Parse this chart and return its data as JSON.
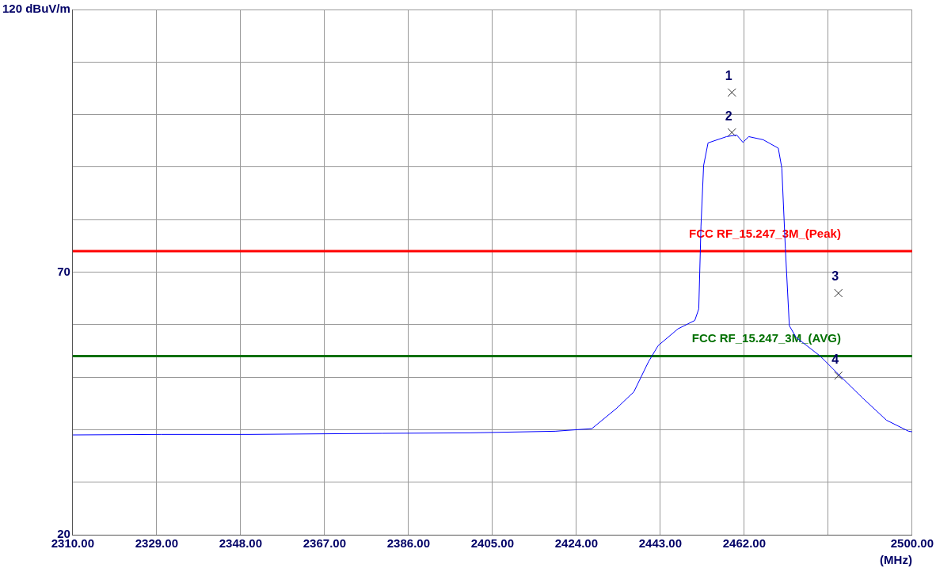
{
  "chart_data": {
    "type": "line",
    "xlabel": "(MHz)",
    "xlim": [
      2310,
      2500
    ],
    "xticks": [
      {
        "value": 2310,
        "label": "2310.00"
      },
      {
        "value": 2329,
        "label": "2329.00"
      },
      {
        "value": 2348,
        "label": "2348.00"
      },
      {
        "value": 2367,
        "label": "2367.00"
      },
      {
        "value": 2386,
        "label": "2386.00"
      },
      {
        "value": 2405,
        "label": "2405.00"
      },
      {
        "value": 2424,
        "label": "2424.00"
      },
      {
        "value": 2443,
        "label": "2443.00"
      },
      {
        "value": 2462,
        "label": "2462.00"
      },
      {
        "value": 2481,
        "label": null
      },
      {
        "value": 2500,
        "label": "2500.00"
      }
    ],
    "ylim": [
      20,
      120
    ],
    "yticks": [
      20,
      {
        "value": 30,
        "label": null
      },
      {
        "value": 40,
        "label": null
      },
      {
        "value": 50,
        "label": null
      },
      {
        "value": 60,
        "label": null
      },
      70,
      {
        "value": 80,
        "label": null
      },
      {
        "value": 90,
        "label": null
      },
      {
        "value": 100,
        "label": null
      },
      {
        "value": 110,
        "label": null
      },
      {
        "value": 120,
        "label": "120 dBuV/m"
      }
    ],
    "grid": true,
    "legend": false,
    "series": [
      {
        "type": "line",
        "color": "#0000ff",
        "marker": "none",
        "x": [
          2310,
          2330,
          2350,
          2380,
          2400,
          2419.2,
          2427.5,
          2433,
          2437,
          2440.3,
          2442.5,
          2447,
          2450.8,
          2451.7,
          2452.2,
          2452.8,
          2453.8,
          2458,
          2460.3,
          2461.7,
          2463,
          2466.3,
          2469.7,
          2470.5,
          2471.3,
          2472.2,
          2473.7,
          2479.2,
          2483,
          2488.7,
          2494.2,
          2499.2,
          2500
        ],
        "values": [
          39,
          39.1,
          39.1,
          39.3,
          39.4,
          39.7,
          40.2,
          44,
          47.2,
          52.9,
          56,
          59.2,
          60.8,
          63,
          78.8,
          90.3,
          94.6,
          95.8,
          96.1,
          94.7,
          95.8,
          95.2,
          93.6,
          89.8,
          74.5,
          59.8,
          57.6,
          54,
          50.8,
          46.1,
          41.8,
          39.7,
          39.6
        ]
      },
      {
        "type": "scatter",
        "color": "#333333",
        "marker": "cross",
        "x": [
          2459.2,
          2459.2,
          2483.3,
          2483.3
        ],
        "values": [
          104.2,
          96.6,
          66,
          50.3
        ]
      }
    ],
    "annotations": [
      "1",
      "2",
      "3",
      "4"
    ],
    "ref_lines": [
      {
        "axis": "y",
        "value": 74,
        "label": "FCC RF_15.247_3M_(Peak)",
        "color": "#ff0000"
      },
      {
        "axis": "y",
        "value": 54,
        "label": "FCC RF_15.247_3M_(AVG)",
        "color": "#007000"
      }
    ]
  }
}
